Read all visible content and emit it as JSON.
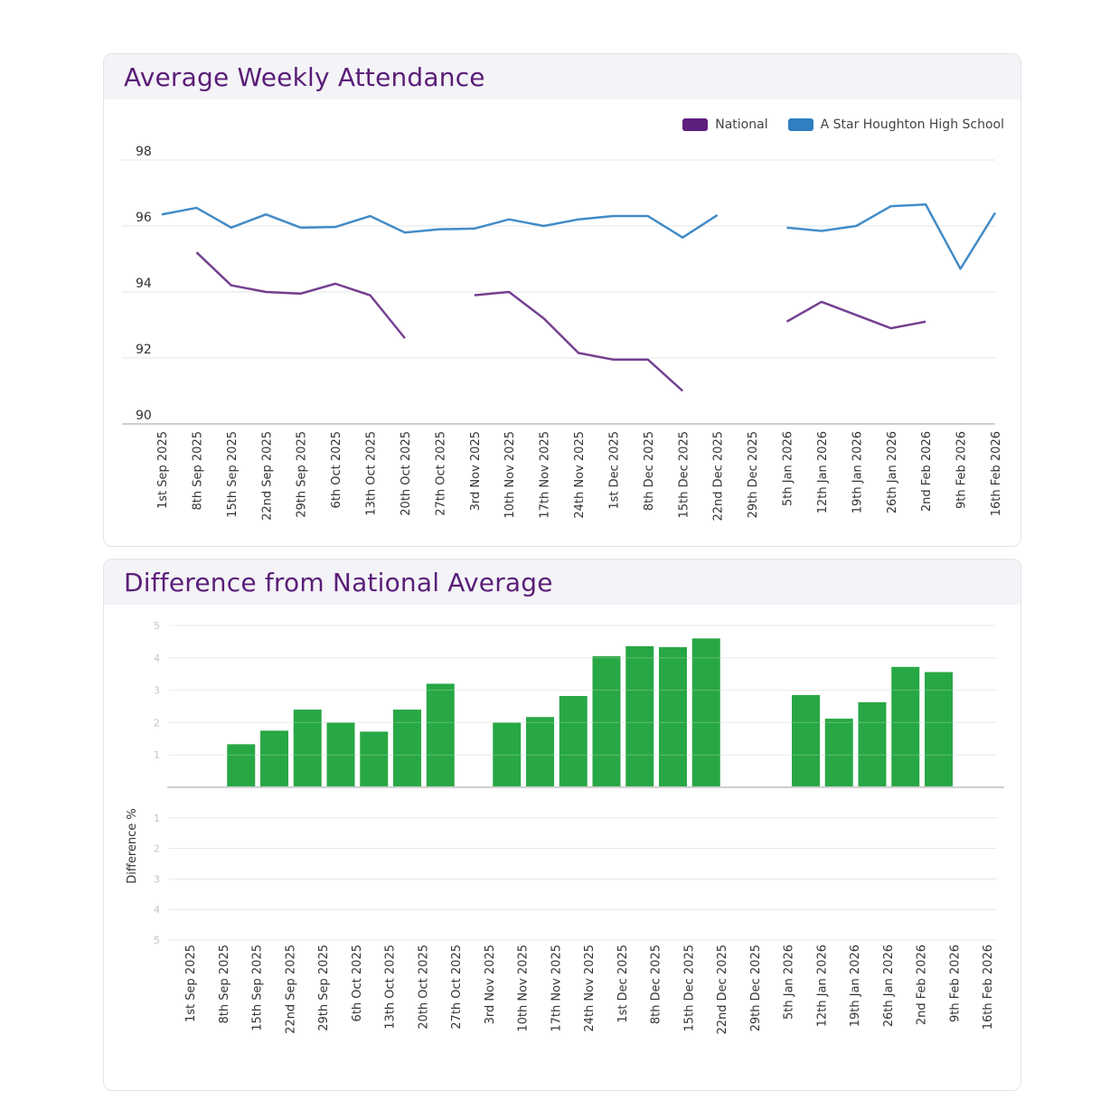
{
  "chart_data": [
    {
      "type": "line",
      "title": "Average Weekly Attendance",
      "xlabel": "",
      "ylabel": "",
      "ylim": [
        90,
        98
      ],
      "yticks": [
        "90",
        "92",
        "94",
        "96",
        "98"
      ],
      "grid": true,
      "legend_position": "top-right",
      "categories": [
        "1st Sep 2025",
        "8th Sep 2025",
        "15th Sep 2025",
        "22nd Sep 2025",
        "29th Sep 2025",
        "6th Oct 2025",
        "13th Oct 2025",
        "20th Oct 2025",
        "27th Oct 2025",
        "3rd Nov 2025",
        "10th Nov 2025",
        "17th Nov 2025",
        "24th Nov 2025",
        "1st Dec 2025",
        "8th Dec 2025",
        "15th Dec 2025",
        "22nd Dec 2025",
        "29th Dec 2025",
        "5th Jan 2026",
        "12th Jan 2026",
        "19th Jan 2026",
        "26th Jan 2026",
        "2nd Feb 2026",
        "9th Feb 2026",
        "16th Feb 2026"
      ],
      "series": [
        {
          "name": "National",
          "color": "#5c1f7d",
          "values": [
            null,
            95.2,
            94.2,
            94.0,
            93.95,
            94.25,
            93.9,
            92.6,
            null,
            93.9,
            94.0,
            93.2,
            92.15,
            91.95,
            91.95,
            91.0,
            null,
            null,
            93.1,
            93.7,
            93.3,
            92.9,
            93.1,
            null,
            null
          ]
        },
        {
          "name": "A Star Houghton High School",
          "color": "#2f7fc1",
          "values": [
            96.35,
            96.55,
            95.95,
            96.35,
            95.95,
            95.97,
            96.3,
            95.8,
            95.9,
            95.92,
            96.2,
            96.0,
            96.2,
            96.3,
            96.3,
            95.65,
            96.33,
            null,
            95.95,
            95.85,
            96.0,
            96.6,
            96.65,
            94.7,
            96.4
          ]
        }
      ]
    },
    {
      "type": "bar",
      "title": "Difference from National Average",
      "xlabel": "",
      "ylabel": "Difference %",
      "ylim": [
        -5,
        5
      ],
      "yticks_upper": [
        "5",
        "4",
        "3",
        "2",
        "1"
      ],
      "yticks_lower": [
        "1",
        "2",
        "3",
        "4",
        "5"
      ],
      "grid": true,
      "bar_color": "#28a745",
      "categories": [
        "1st Sep 2025",
        "8th Sep 2025",
        "15th Sep 2025",
        "22nd Sep 2025",
        "29th Sep 2025",
        "6th Oct 2025",
        "13th Oct 2025",
        "20th Oct 2025",
        "27th Oct 2025",
        "3rd Nov 2025",
        "10th Nov 2025",
        "17th Nov 2025",
        "24th Nov 2025",
        "1st Dec 2025",
        "8th Dec 2025",
        "15th Dec 2025",
        "22nd Dec 2025",
        "29th Dec 2025",
        "5th Jan 2026",
        "12th Jan 2026",
        "19th Jan 2026",
        "26th Jan 2026",
        "2nd Feb 2026",
        "9th Feb 2026",
        "16th Feb 2026"
      ],
      "values": [
        null,
        1.33,
        1.75,
        2.4,
        2.0,
        1.72,
        2.4,
        3.2,
        null,
        2.0,
        2.17,
        2.82,
        4.05,
        4.36,
        4.33,
        4.6,
        null,
        null,
        2.85,
        2.12,
        2.63,
        3.72,
        3.56,
        null,
        null
      ]
    }
  ]
}
